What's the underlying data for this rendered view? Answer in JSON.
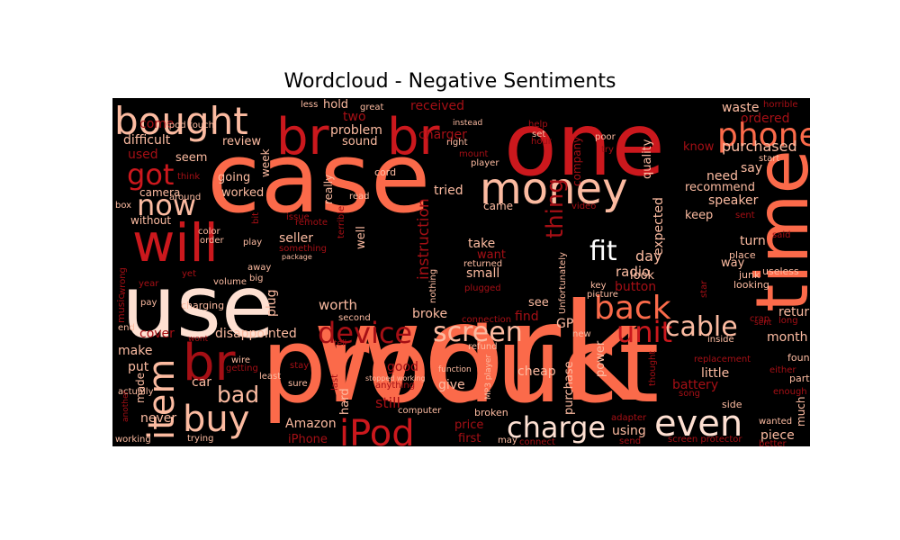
{
  "title": "Wordcloud - Negative Sentiments",
  "colors": {
    "background": "#000000",
    "lightest": "#fee0d2",
    "light": "#fcbba1",
    "salmon": "#fc9272",
    "coral": "#fb6a4a",
    "red": "#ef3b2c",
    "crimson": "#cb181d",
    "dark": "#a50f15",
    "darkest": "#67000d"
  },
  "words": [
    {
      "text": "work",
      "color": "#fb6a4a"
    },
    {
      "text": "product",
      "color": "#fb6a4a"
    },
    {
      "text": "case",
      "color": "#fb6a4a"
    },
    {
      "text": "one",
      "color": "#cb181d"
    },
    {
      "text": "use",
      "color": "#fee0d2"
    },
    {
      "text": "time",
      "color": "#fb6a4a"
    },
    {
      "text": "br",
      "color": "#cb181d"
    },
    {
      "text": "br",
      "color": "#cb181d"
    },
    {
      "text": "br",
      "color": "#a50f15"
    },
    {
      "text": "will",
      "color": "#cb181d"
    },
    {
      "text": "bought",
      "color": "#fcbba1"
    },
    {
      "text": "money",
      "color": "#fcbba1"
    },
    {
      "text": "buy",
      "color": "#fcbba1"
    },
    {
      "text": "item",
      "color": "#fcbba1"
    },
    {
      "text": "even",
      "color": "#fee0d2"
    },
    {
      "text": "phone",
      "color": "#fb6a4a"
    },
    {
      "text": "now",
      "color": "#fcbba1"
    },
    {
      "text": "iPod",
      "color": "#cb181d"
    },
    {
      "text": "back",
      "color": "#fb6a4a"
    },
    {
      "text": "charge",
      "color": "#fee0d2"
    },
    {
      "text": "unit",
      "color": "#cb181d"
    },
    {
      "text": "device",
      "color": "#a50f15"
    },
    {
      "text": "screen",
      "color": "#fcbba1"
    },
    {
      "text": "fit",
      "color": "#ffffff"
    },
    {
      "text": "got",
      "color": "#cb181d"
    },
    {
      "text": "cable",
      "color": "#fcbba1"
    },
    {
      "text": "bad",
      "color": "#fcbba1"
    },
    {
      "text": "thing",
      "color": "#a50f15"
    },
    {
      "text": "instruction",
      "color": "#a50f15"
    },
    {
      "text": "day",
      "color": "#fcbba1"
    },
    {
      "text": "waste",
      "color": "#fcbba1"
    },
    {
      "text": "ordered",
      "color": "#a50f15"
    },
    {
      "text": "purchased",
      "color": "#fcbba1"
    },
    {
      "text": "received",
      "color": "#a50f15"
    },
    {
      "text": "two",
      "color": "#a50f15"
    },
    {
      "text": "hold",
      "color": "#fcbba1"
    },
    {
      "text": "problem",
      "color": "#fcbba1"
    },
    {
      "text": "sound",
      "color": "#fcbba1"
    },
    {
      "text": "charger",
      "color": "#a50f15"
    },
    {
      "text": "difficult",
      "color": "#fcbba1"
    },
    {
      "text": "review",
      "color": "#fcbba1"
    },
    {
      "text": "used",
      "color": "#a50f15"
    },
    {
      "text": "seem",
      "color": "#fcbba1"
    },
    {
      "text": "come",
      "color": "#a50f15"
    },
    {
      "text": "ipod touch",
      "color": "#fcbba1"
    },
    {
      "text": "camera",
      "color": "#fcbba1"
    },
    {
      "text": "going",
      "color": "#fcbba1"
    },
    {
      "text": "worked",
      "color": "#fcbba1"
    },
    {
      "text": "week",
      "color": "#fcbba1"
    },
    {
      "text": "really",
      "color": "#fcbba1"
    },
    {
      "text": "tried",
      "color": "#fcbba1"
    },
    {
      "text": "came",
      "color": "#fcbba1"
    },
    {
      "text": "recommend",
      "color": "#fcbba1"
    },
    {
      "text": "speaker",
      "color": "#fcbba1"
    },
    {
      "text": "need",
      "color": "#fcbba1"
    },
    {
      "text": "keep",
      "color": "#fcbba1"
    },
    {
      "text": "know",
      "color": "#a50f15"
    },
    {
      "text": "say",
      "color": "#fcbba1"
    },
    {
      "text": "quality",
      "color": "#fcbba1"
    },
    {
      "text": "company",
      "color": "#a50f15"
    },
    {
      "text": "expected",
      "color": "#fcbba1"
    },
    {
      "text": "way",
      "color": "#fcbba1"
    },
    {
      "text": "turn",
      "color": "#fcbba1"
    },
    {
      "text": "radio",
      "color": "#fcbba1"
    },
    {
      "text": "button",
      "color": "#a50f15"
    },
    {
      "text": "look",
      "color": "#fcbba1"
    },
    {
      "text": "take",
      "color": "#fcbba1"
    },
    {
      "text": "want",
      "color": "#a50f15"
    },
    {
      "text": "small",
      "color": "#fcbba1"
    },
    {
      "text": "seller",
      "color": "#fcbba1"
    },
    {
      "text": "well",
      "color": "#fcbba1"
    },
    {
      "text": "without",
      "color": "#fcbba1"
    },
    {
      "text": "plug",
      "color": "#fcbba1"
    },
    {
      "text": "worth",
      "color": "#fcbba1"
    },
    {
      "text": "broke",
      "color": "#fcbba1"
    },
    {
      "text": "see",
      "color": "#fcbba1"
    },
    {
      "text": "find",
      "color": "#a50f15"
    },
    {
      "text": "disappointed",
      "color": "#fcbba1"
    },
    {
      "text": "cover",
      "color": "#a50f15"
    },
    {
      "text": "make",
      "color": "#fcbba1"
    },
    {
      "text": "put",
      "color": "#fcbba1"
    },
    {
      "text": "car",
      "color": "#fcbba1"
    },
    {
      "text": "made",
      "color": "#fcbba1"
    },
    {
      "text": "never",
      "color": "#fcbba1"
    },
    {
      "text": "good",
      "color": "#a50f15"
    },
    {
      "text": "hard",
      "color": "#fcbba1"
    },
    {
      "text": "still",
      "color": "#a50f15"
    },
    {
      "text": "give",
      "color": "#fcbba1"
    },
    {
      "text": "Amazon",
      "color": "#fcbba1"
    },
    {
      "text": "iPhone",
      "color": "#a50f15"
    },
    {
      "text": "price",
      "color": "#a50f15"
    },
    {
      "text": "first",
      "color": "#a50f15"
    },
    {
      "text": "purchase",
      "color": "#fcbba1"
    },
    {
      "text": "power",
      "color": "#fcbba1"
    },
    {
      "text": "using",
      "color": "#fcbba1"
    },
    {
      "text": "little",
      "color": "#fcbba1"
    },
    {
      "text": "battery",
      "color": "#a50f15"
    },
    {
      "text": "month",
      "color": "#fcbba1"
    },
    {
      "text": "return",
      "color": "#fcbba1"
    },
    {
      "text": "piece",
      "color": "#fcbba1"
    },
    {
      "text": "much",
      "color": "#fcbba1"
    },
    {
      "text": "wanted",
      "color": "#fcbba1"
    },
    {
      "text": "found",
      "color": "#fcbba1"
    },
    {
      "text": "part",
      "color": "#fcbba1"
    },
    {
      "text": "side",
      "color": "#fcbba1"
    },
    {
      "text": "junk",
      "color": "#fcbba1"
    },
    {
      "text": "useless",
      "color": "#fcbba1"
    },
    {
      "text": "looking",
      "color": "#fcbba1"
    },
    {
      "text": "place",
      "color": "#fcbba1"
    },
    {
      "text": "GP",
      "color": "#fcbba1"
    },
    {
      "text": "Unfortunately",
      "color": "#fcbba1"
    },
    {
      "text": "returned",
      "color": "#fcbba1"
    },
    {
      "text": "plugged",
      "color": "#a50f15"
    },
    {
      "text": "charging",
      "color": "#fcbba1"
    },
    {
      "text": "music",
      "color": "#a50f15"
    },
    {
      "text": "volume",
      "color": "#fcbba1"
    },
    {
      "text": "away",
      "color": "#fcbba1"
    },
    {
      "text": "play",
      "color": "#fcbba1"
    },
    {
      "text": "big",
      "color": "#fcbba1"
    },
    {
      "text": "color",
      "color": "#fcbba1"
    },
    {
      "text": "order",
      "color": "#fcbba1"
    },
    {
      "text": "box",
      "color": "#fcbba1"
    },
    {
      "text": "think",
      "color": "#a50f15"
    },
    {
      "text": "around",
      "color": "#fcbba1"
    },
    {
      "text": "cord",
      "color": "#fcbba1"
    },
    {
      "text": "read",
      "color": "#fcbba1"
    },
    {
      "text": "player",
      "color": "#fcbba1"
    },
    {
      "text": "mount",
      "color": "#a50f15"
    },
    {
      "text": "right",
      "color": "#fcbba1"
    },
    {
      "text": "instead",
      "color": "#fcbba1"
    },
    {
      "text": "great",
      "color": "#fcbba1"
    },
    {
      "text": "less",
      "color": "#fcbba1"
    },
    {
      "text": "help",
      "color": "#a50f15"
    },
    {
      "text": "set",
      "color": "#fcbba1"
    },
    {
      "text": "hour",
      "color": "#a50f15"
    },
    {
      "text": "poor",
      "color": "#fcbba1"
    },
    {
      "text": "try",
      "color": "#a50f15"
    },
    {
      "text": "horrible",
      "color": "#a50f15"
    },
    {
      "text": "start",
      "color": "#fcbba1"
    },
    {
      "text": "sent",
      "color": "#a50f15"
    },
    {
      "text": "said",
      "color": "#a50f15"
    },
    {
      "text": "video",
      "color": "#a50f15"
    },
    {
      "text": "issue",
      "color": "#a50f15"
    },
    {
      "text": "remote",
      "color": "#a50f15"
    },
    {
      "text": "package",
      "color": "#fcbba1"
    },
    {
      "text": "something",
      "color": "#a50f15"
    },
    {
      "text": "bit",
      "color": "#a50f15"
    },
    {
      "text": "terrible",
      "color": "#a50f15"
    },
    {
      "text": "though",
      "color": "#fcbba1"
    },
    {
      "text": "nothing",
      "color": "#fcbba1"
    },
    {
      "text": "key",
      "color": "#fcbba1"
    },
    {
      "text": "picture",
      "color": "#fcbba1"
    },
    {
      "text": "connection",
      "color": "#a50f15"
    },
    {
      "text": "second",
      "color": "#fcbba1"
    },
    {
      "text": "refund",
      "color": "#fcbba1"
    },
    {
      "text": "new",
      "color": "#fcbba1"
    },
    {
      "text": "long",
      "color": "#a50f15"
    },
    {
      "text": "crap",
      "color": "#a50f15"
    },
    {
      "text": "inside",
      "color": "#fcbba1"
    },
    {
      "text": "star",
      "color": "#a50f15"
    },
    {
      "text": "replacement",
      "color": "#a50f15"
    },
    {
      "text": "thought",
      "color": "#a50f15"
    },
    {
      "text": "song",
      "color": "#a50f15"
    },
    {
      "text": "either",
      "color": "#a50f15"
    },
    {
      "text": "enough",
      "color": "#a50f15"
    },
    {
      "text": "better",
      "color": "#a50f15"
    },
    {
      "text": "screen protector",
      "color": "#a50f15"
    },
    {
      "text": "send",
      "color": "#a50f15"
    },
    {
      "text": "adapter",
      "color": "#a50f15"
    },
    {
      "text": "cheap",
      "color": "#fcbba1"
    },
    {
      "text": "function",
      "color": "#fcbba1"
    },
    {
      "text": "MP3 player",
      "color": "#fcbba1"
    },
    {
      "text": "broken",
      "color": "#fcbba1"
    },
    {
      "text": "connect",
      "color": "#a50f15"
    },
    {
      "text": "may",
      "color": "#fcbba1"
    },
    {
      "text": "stopped working",
      "color": "#fcbba1"
    },
    {
      "text": "anything",
      "color": "#a50f15"
    },
    {
      "text": "computer",
      "color": "#fcbba1"
    },
    {
      "text": "stay",
      "color": "#a50f15"
    },
    {
      "text": "sure",
      "color": "#fcbba1"
    },
    {
      "text": "least",
      "color": "#fcbba1"
    },
    {
      "text": "wire",
      "color": "#fcbba1"
    },
    {
      "text": "getting",
      "color": "#a50f15"
    },
    {
      "text": "last",
      "color": "#a50f15"
    },
    {
      "text": "wont",
      "color": "#a50f15"
    },
    {
      "text": "tell",
      "color": "#a50f15"
    },
    {
      "text": "actually",
      "color": "#fcbba1"
    },
    {
      "text": "another",
      "color": "#a50f15"
    },
    {
      "text": "end",
      "color": "#fcbba1"
    },
    {
      "text": "pay",
      "color": "#fcbba1"
    },
    {
      "text": "year",
      "color": "#a50f15"
    },
    {
      "text": "yet",
      "color": "#a50f15"
    },
    {
      "text": "wrong",
      "color": "#a50f15"
    },
    {
      "text": "working",
      "color": "#fcbba1"
    },
    {
      "text": "trying",
      "color": "#fcbba1"
    },
    {
      "text": "sent",
      "color": "#a50f15"
    }
  ]
}
